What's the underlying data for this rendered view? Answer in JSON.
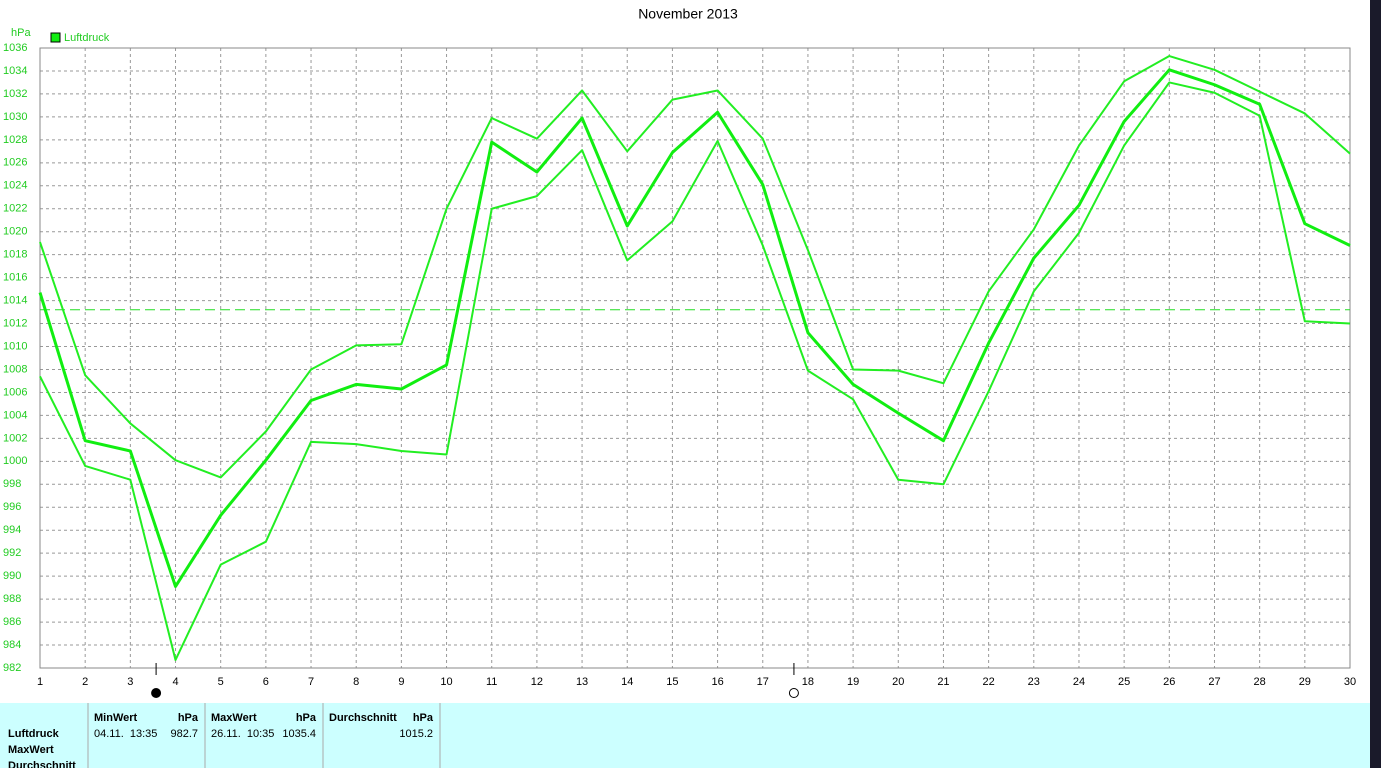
{
  "chart_data": {
    "type": "line",
    "title": "November 2013",
    "y_label": "hPa",
    "x": [
      1,
      2,
      3,
      4,
      5,
      6,
      7,
      8,
      9,
      10,
      11,
      12,
      13,
      14,
      15,
      16,
      17,
      18,
      19,
      20,
      21,
      22,
      23,
      24,
      25,
      26,
      27,
      28,
      29,
      30
    ],
    "xlim": [
      1,
      30
    ],
    "xticks": [
      1,
      2,
      3,
      4,
      5,
      6,
      7,
      8,
      9,
      10,
      11,
      12,
      13,
      14,
      15,
      16,
      17,
      18,
      19,
      20,
      21,
      22,
      23,
      24,
      25,
      26,
      27,
      28,
      29,
      30
    ],
    "ylim": [
      982,
      1036
    ],
    "yticks": [
      982,
      984,
      986,
      988,
      990,
      992,
      994,
      996,
      998,
      1000,
      1002,
      1004,
      1006,
      1008,
      1010,
      1012,
      1014,
      1016,
      1018,
      1020,
      1022,
      1024,
      1026,
      1028,
      1030,
      1032,
      1034,
      1036
    ],
    "grid": true,
    "legend": "top-left",
    "series": [
      {
        "name": "Luftdruck",
        "color": "#11ee11",
        "width": 3,
        "values": [
          1014.7,
          1001.8,
          1000.9,
          989.1,
          995.3,
          1000.1,
          1005.3,
          1006.7,
          1006.3,
          1008.4,
          1027.8,
          1025.2,
          1029.9,
          1020.5,
          1026.9,
          1030.4,
          1024.1,
          1011.2,
          1006.7,
          1004.2,
          1001.8,
          1010.3,
          1017.7,
          1022.3,
          1029.6,
          1034.1,
          1032.8,
          1031.1,
          1020.7,
          1018.8
        ]
      },
      {
        "color": "#22ee22",
        "width": 2,
        "values": [
          1019.1,
          1007.5,
          1003.3,
          1000.1,
          998.6,
          1002.6,
          1008.0,
          1010.1,
          1010.2,
          1022.0,
          1029.9,
          1028.1,
          1032.3,
          1027.0,
          1031.5,
          1032.3,
          1028.1,
          1018.4,
          1008.0,
          1007.9,
          1006.8,
          1014.8,
          1020.2,
          1027.5,
          1033.1,
          1035.3,
          1034.1,
          1032.2,
          1030.3,
          1026.8
        ]
      },
      {
        "color": "#22ee22",
        "width": 2,
        "values": [
          1007.4,
          999.6,
          998.4,
          982.7,
          991.0,
          993.0,
          1001.7,
          1001.5,
          1000.9,
          1000.6,
          1022.0,
          1023.1,
          1027.1,
          1017.5,
          1020.9,
          1027.9,
          1018.8,
          1007.9,
          1005.4,
          998.4,
          998.0,
          1006.1,
          1014.8,
          1019.9,
          1027.5,
          1033.0,
          1032.1,
          1030.1,
          1012.2,
          1012.0
        ]
      }
    ],
    "reference_line": 1013.2,
    "moon_markers": [
      {
        "x": 3.57,
        "filled": true
      },
      {
        "x": 17.69,
        "filled": false
      }
    ]
  },
  "table": {
    "row_labels": [
      "Luftdruck",
      "MaxWert",
      "Durchschnitt"
    ],
    "groups": [
      {
        "header": "MinWert",
        "unit": "hPa",
        "time": "04.11.  13:35",
        "value": 982.7
      },
      {
        "header": "MaxWert",
        "unit": "hPa",
        "time": "26.11.  10:35",
        "value": 1035.4
      },
      {
        "header": "Durchschnitt",
        "unit": "hPa",
        "value": 1015.2
      }
    ]
  }
}
